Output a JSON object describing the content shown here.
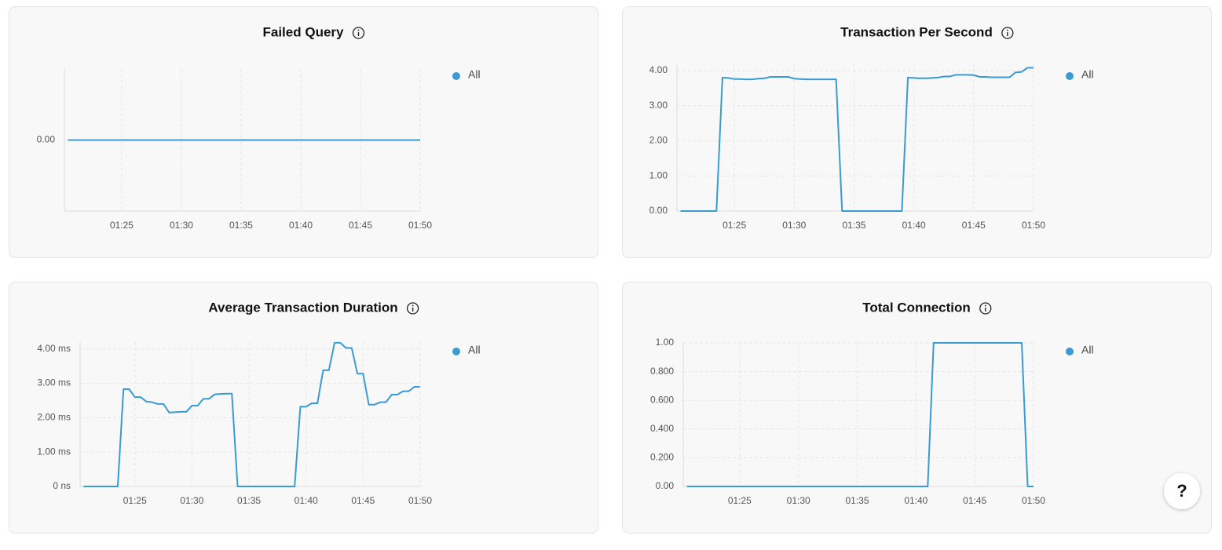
{
  "chart_data": [
    {
      "type": "line",
      "title": "Failed Query",
      "x": [
        80.5,
        110
      ],
      "series": [
        {
          "name": "All",
          "color": "#3a9ad3",
          "values": [
            0,
            0
          ]
        }
      ],
      "xlim": [
        80.2,
        110
      ],
      "ylim": [
        -1,
        1
      ],
      "xticks": [
        {
          "value": 85,
          "label": "01:25"
        },
        {
          "value": 90,
          "label": "01:30"
        },
        {
          "value": 95,
          "label": "01:35"
        },
        {
          "value": 100,
          "label": "01:40"
        },
        {
          "value": 105,
          "label": "01:45"
        },
        {
          "value": 110,
          "label": "01:50"
        }
      ],
      "yticks": [
        {
          "value": 0,
          "label": "0.00"
        }
      ],
      "grid": true
    },
    {
      "type": "line",
      "title": "Transaction Per Second",
      "x": [
        80.5,
        83.5,
        84,
        84.5,
        85,
        85.5,
        86,
        86.5,
        87,
        87.5,
        88,
        88.5,
        89,
        89.5,
        90,
        90.5,
        91,
        91.5,
        92,
        92.5,
        93,
        93.5,
        94,
        99,
        99.5,
        100,
        100.5,
        101,
        101.5,
        102,
        102.5,
        103,
        103.5,
        104,
        104.5,
        105,
        105.5,
        106,
        106.5,
        107,
        107.5,
        108,
        108.5,
        109,
        109.5,
        110
      ],
      "series": [
        {
          "name": "All",
          "color": "#3a9ad3",
          "values": [
            0,
            0,
            3.8,
            3.79,
            3.76,
            3.76,
            3.75,
            3.75,
            3.77,
            3.78,
            3.82,
            3.82,
            3.82,
            3.82,
            3.77,
            3.76,
            3.75,
            3.75,
            3.75,
            3.75,
            3.75,
            3.75,
            0,
            0,
            3.8,
            3.79,
            3.78,
            3.78,
            3.79,
            3.8,
            3.83,
            3.83,
            3.88,
            3.88,
            3.88,
            3.87,
            3.82,
            3.82,
            3.81,
            3.81,
            3.81,
            3.81,
            3.95,
            3.96,
            4.08,
            4.08
          ]
        }
      ],
      "xlim": [
        80.2,
        110
      ],
      "ylim": [
        0,
        4.2
      ],
      "xticks": [
        {
          "value": 85,
          "label": "01:25"
        },
        {
          "value": 90,
          "label": "01:30"
        },
        {
          "value": 95,
          "label": "01:35"
        },
        {
          "value": 100,
          "label": "01:40"
        },
        {
          "value": 105,
          "label": "01:45"
        },
        {
          "value": 110,
          "label": "01:50"
        }
      ],
      "yticks": [
        {
          "value": 0,
          "label": "0.00"
        },
        {
          "value": 1,
          "label": "1.00"
        },
        {
          "value": 2,
          "label": "2.00"
        },
        {
          "value": 3,
          "label": "3.00"
        },
        {
          "value": 4,
          "label": "4.00"
        }
      ],
      "grid": true
    },
    {
      "type": "line",
      "title": "Average Transaction Duration",
      "x": [
        80.5,
        83.5,
        84,
        84.5,
        85,
        85.5,
        86,
        86.5,
        87,
        87.5,
        88,
        88.5,
        89,
        89.5,
        90,
        90.5,
        91,
        91.5,
        92,
        92.5,
        93,
        93.5,
        94,
        99,
        99.5,
        100,
        100.5,
        101,
        101.5,
        102,
        102.5,
        103,
        103.5,
        104,
        104.5,
        105,
        105.5,
        106,
        106.5,
        107,
        107.5,
        108,
        108.5,
        109,
        109.5,
        110
      ],
      "series": [
        {
          "name": "All",
          "color": "#3a9ad3",
          "values": [
            0,
            0,
            2.83,
            2.83,
            2.6,
            2.6,
            2.47,
            2.45,
            2.4,
            2.4,
            2.15,
            2.16,
            2.17,
            2.17,
            2.35,
            2.35,
            2.55,
            2.55,
            2.68,
            2.69,
            2.7,
            2.7,
            0,
            0,
            2.32,
            2.32,
            2.42,
            2.42,
            3.38,
            3.38,
            4.18,
            4.18,
            4.03,
            4.03,
            3.28,
            3.28,
            2.38,
            2.38,
            2.45,
            2.45,
            2.67,
            2.67,
            2.77,
            2.77,
            2.9,
            2.9
          ]
        }
      ],
      "xlim": [
        80.2,
        110
      ],
      "ylim": [
        0,
        4.2
      ],
      "xticks": [
        {
          "value": 85,
          "label": "01:25"
        },
        {
          "value": 90,
          "label": "01:30"
        },
        {
          "value": 95,
          "label": "01:35"
        },
        {
          "value": 100,
          "label": "01:40"
        },
        {
          "value": 105,
          "label": "01:45"
        },
        {
          "value": 110,
          "label": "01:50"
        }
      ],
      "yticks": [
        {
          "value": 0,
          "label": "0 ns"
        },
        {
          "value": 1,
          "label": "1.00 ms"
        },
        {
          "value": 2,
          "label": "2.00 ms"
        },
        {
          "value": 3,
          "label": "3.00 ms"
        },
        {
          "value": 4,
          "label": "4.00 ms"
        }
      ],
      "grid": true
    },
    {
      "type": "line",
      "title": "Total Connection",
      "x": [
        80.5,
        101,
        101.5,
        109,
        109.5,
        110
      ],
      "series": [
        {
          "name": "All",
          "color": "#3a9ad3",
          "values": [
            0,
            0,
            1,
            1,
            0,
            0
          ]
        }
      ],
      "xlim": [
        80.2,
        110
      ],
      "ylim": [
        0,
        1
      ],
      "xticks": [
        {
          "value": 85,
          "label": "01:25"
        },
        {
          "value": 90,
          "label": "01:30"
        },
        {
          "value": 95,
          "label": "01:35"
        },
        {
          "value": 100,
          "label": "01:40"
        },
        {
          "value": 105,
          "label": "01:45"
        },
        {
          "value": 110,
          "label": "01:50"
        }
      ],
      "yticks": [
        {
          "value": 0,
          "label": "0.00"
        },
        {
          "value": 0.2,
          "label": "0.200"
        },
        {
          "value": 0.4,
          "label": "0.400"
        },
        {
          "value": 0.6,
          "label": "0.600"
        },
        {
          "value": 0.8,
          "label": "0.800"
        },
        {
          "value": 1,
          "label": "1.00"
        }
      ],
      "grid": true
    }
  ],
  "help_label": "?"
}
